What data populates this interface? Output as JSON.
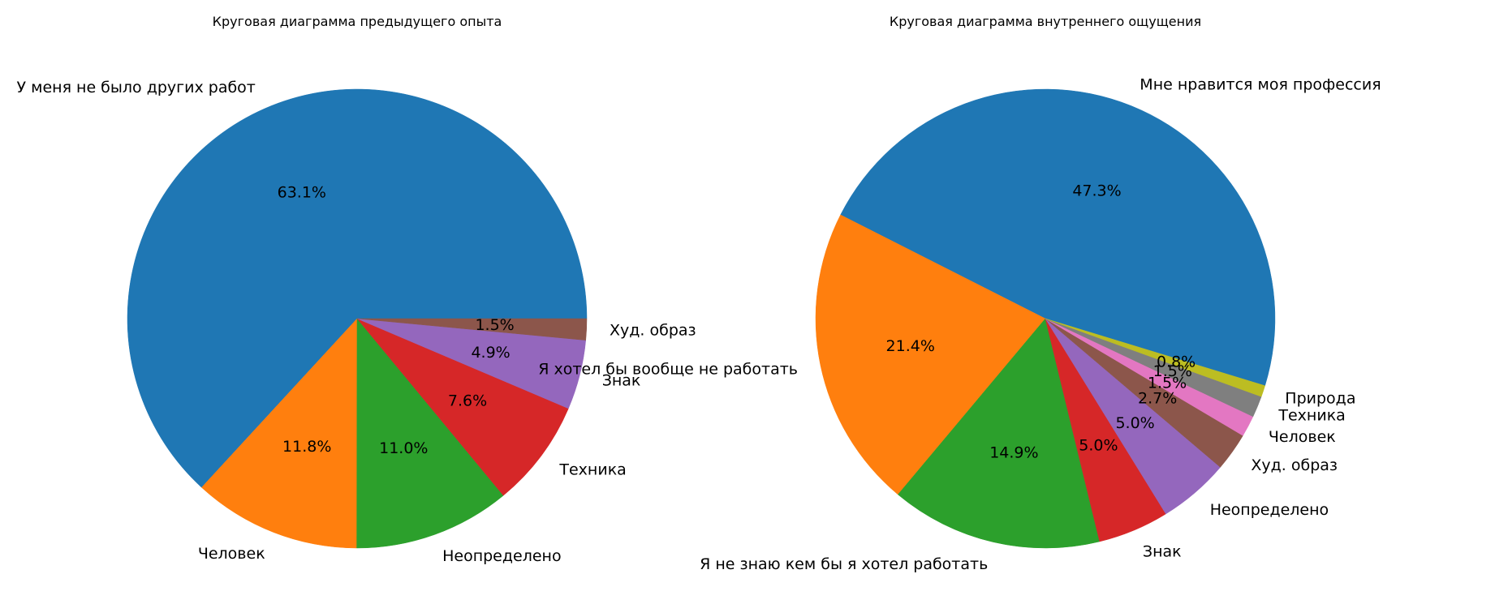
{
  "chart_data": [
    {
      "type": "pie",
      "title": "Круговая диаграмма предыдущего опыта",
      "categories": [
        "У меня не было других работ",
        "Человек",
        "Неопределено",
        "Техника",
        "Знак",
        "Худ. образ"
      ],
      "values": [
        63.1,
        11.8,
        11.0,
        7.6,
        4.9,
        1.5
      ],
      "value_labels": [
        "63.1%",
        "11.8%",
        "11.0%",
        "7.6%",
        "4.9%",
        "1.5%"
      ],
      "colors": [
        "#1f77b4",
        "#ff7f0e",
        "#2ca02c",
        "#d62728",
        "#9467bd",
        "#8c564b"
      ],
      "start_angle_deg": 0,
      "direction": "counterclockwise"
    },
    {
      "type": "pie",
      "title": "Круговая диаграмма внутреннего ощущения",
      "categories": [
        "Мне нравится моя профессия",
        "Я хотел бы вообще не работать",
        "Я не знаю кем бы я хотел работать",
        "Знак",
        "Неопределено",
        "Худ. образ",
        "Человек",
        "Техника",
        "Природа"
      ],
      "values": [
        47.3,
        21.4,
        14.9,
        5.0,
        5.0,
        2.7,
        1.5,
        1.5,
        0.8
      ],
      "value_labels": [
        "47.3%",
        "21.4%",
        "14.9%",
        "5.0%",
        "5.0%",
        "2.7%",
        "1.5%",
        "1.5%",
        "0.8%"
      ],
      "colors": [
        "#1f77b4",
        "#ff7f0e",
        "#2ca02c",
        "#d62728",
        "#9467bd",
        "#8c564b",
        "#e377c2",
        "#7f7f7f",
        "#bcbd22"
      ],
      "start_angle_deg": -17,
      "direction": "counterclockwise"
    }
  ]
}
